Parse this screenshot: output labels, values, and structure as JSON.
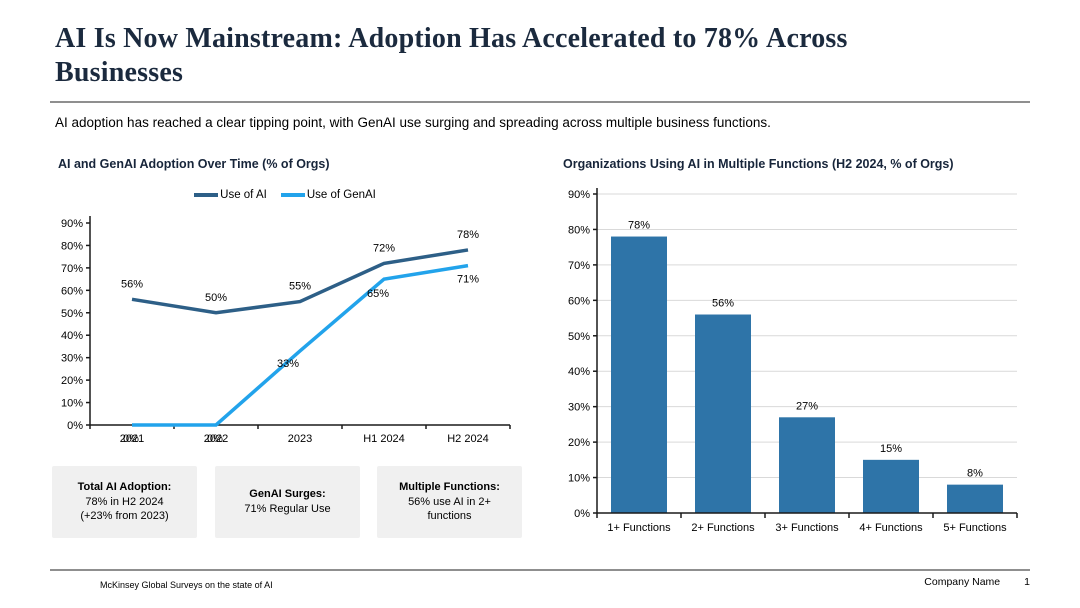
{
  "header": {
    "title_lines": [
      "AI Is Now Mainstream: Adoption Has Accelerated to 78% Across",
      "Businesses"
    ],
    "subtitle": "AI adoption has reached a clear tipping point, with GenAI use surging and spreading across multiple business functions."
  },
  "colors": {
    "title_navy": "#1b2a3e",
    "ai_line": "#2d5f87",
    "genai_line": "#22a3eb",
    "bar_fill": "#2e74a8",
    "gridline": "#d9d9d9",
    "axis": "#1a1a1a",
    "callout_bg": "#f0f0f0"
  },
  "chart_data": [
    {
      "type": "line",
      "title": "AI and GenAI Adoption Over Time (% of Orgs)",
      "categories": [
        "2021",
        "2022",
        "2023",
        "H1 2024",
        "H2 2024"
      ],
      "series": [
        {
          "name": "Use of AI",
          "color": "#2d5f87",
          "values": [
            56,
            50,
            55,
            72,
            78
          ]
        },
        {
          "name": "Use of GenAI",
          "color": "#22a3eb",
          "values": [
            0,
            0,
            33,
            65,
            71
          ]
        }
      ],
      "ylabel": "% of Orgs",
      "ylim": [
        0,
        90
      ],
      "ytick_step": 10,
      "grid": false,
      "legend_position": "top",
      "label_format": "percent"
    },
    {
      "type": "bar",
      "title": "Organizations Using AI in Multiple Functions (H2 2024, % of Orgs)",
      "categories": [
        "1+ Functions",
        "2+ Functions",
        "3+ Functions",
        "4+ Functions",
        "5+ Functions"
      ],
      "values": [
        78,
        56,
        27,
        15,
        8
      ],
      "ylabel": "% of Orgs",
      "ylim": [
        0,
        90
      ],
      "ytick_step": 10,
      "grid": true,
      "label_format": "percent"
    }
  ],
  "callouts": [
    {
      "title": "Total AI Adoption:",
      "lines": [
        "78% in H2 2024",
        "(+23% from 2023)"
      ]
    },
    {
      "title": "GenAI Surges:",
      "lines": [
        "71% Regular Use"
      ]
    },
    {
      "title": "Multiple Functions:",
      "lines": [
        "56% use AI in 2+ functions"
      ]
    }
  ],
  "footer": {
    "source": "McKinsey Global Surveys on the state of AI",
    "company": "Company Name",
    "page": "1"
  }
}
